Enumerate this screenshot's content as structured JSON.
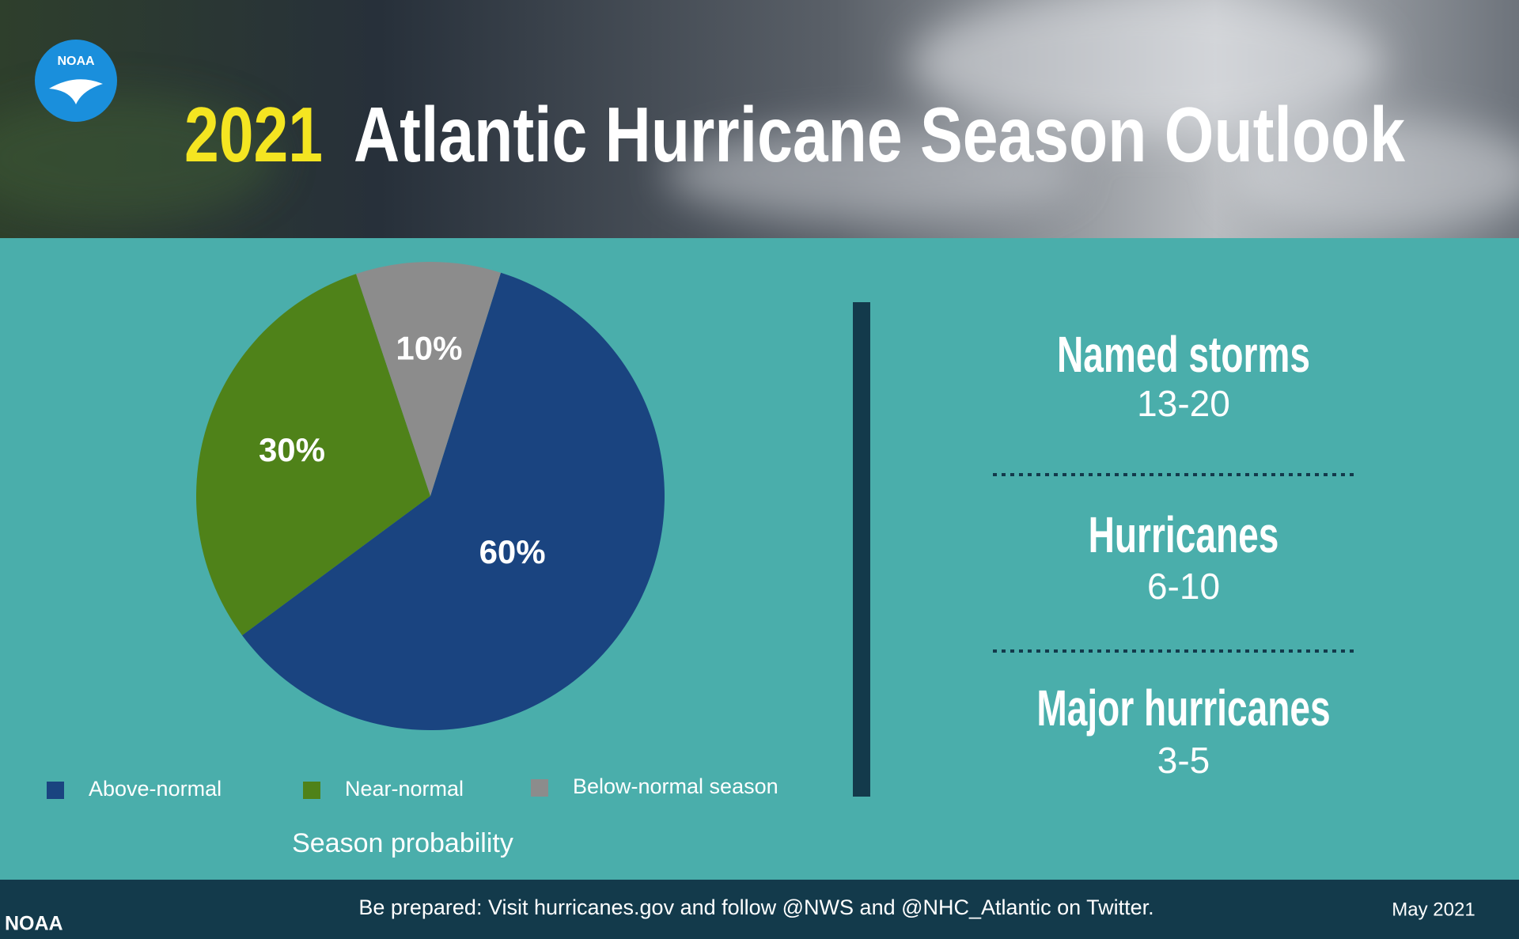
{
  "header": {
    "logo": "NOAA",
    "year": "2021",
    "title": "Atlantic Hurricane Season Outlook"
  },
  "chart_data": {
    "type": "pie",
    "categories": [
      "Above-normal",
      "Near-normal",
      "Below-normal season"
    ],
    "values": [
      60,
      30,
      10
    ],
    "value_labels": [
      "60%",
      "30%",
      "10%"
    ],
    "colors": [
      "#1a4480",
      "#4f8219",
      "#8c8c8c"
    ],
    "caption": "Season probability"
  },
  "stats": [
    {
      "label": "Named storms",
      "range": "13-20"
    },
    {
      "label": "Hurricanes",
      "range": "6-10"
    },
    {
      "label": "Major hurricanes",
      "range": "3-5"
    }
  ],
  "footer": {
    "source": "NOAA",
    "message": "Be prepared: Visit hurricanes.gov and follow @NWS and @NHC_Atlantic on Twitter.",
    "date": "May 2021"
  }
}
